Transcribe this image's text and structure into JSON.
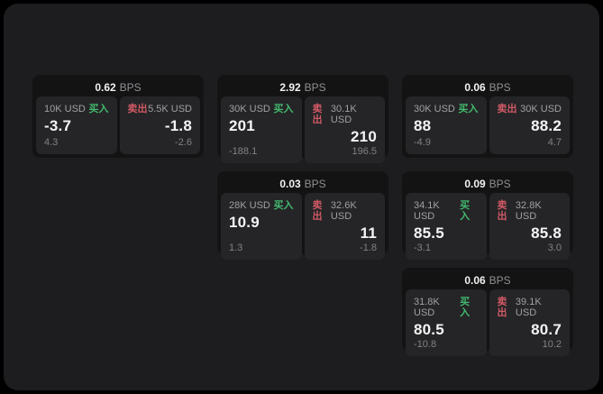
{
  "labels": {
    "unit": "BPS",
    "buy": "买入",
    "sell": "卖出"
  },
  "colors": {
    "page_bg": "#000000",
    "panel_bg": "#1d1d1f",
    "card_bg": "#131314",
    "subcard_bg": "#252527",
    "buy_accent": "#43b96e",
    "sell_accent": "#d05965",
    "primary_text": "#f4f4f5",
    "muted_text": "#9fa0a3"
  },
  "cards": [
    {
      "bps": "0.62",
      "buy": {
        "amount": "10K USD",
        "price": "-3.7",
        "delta": "4.3"
      },
      "sell": {
        "amount": "5.5K USD",
        "price": "-1.8",
        "delta": "-2.6"
      }
    },
    {
      "bps": "2.92",
      "buy": {
        "amount": "30K USD",
        "price": "201",
        "delta": "-188.1"
      },
      "sell": {
        "amount": "30.1K USD",
        "price": "210",
        "delta": "196.5"
      }
    },
    {
      "bps": "0.06",
      "buy": {
        "amount": "30K USD",
        "price": "88",
        "delta": "-4.9"
      },
      "sell": {
        "amount": "30K USD",
        "price": "88.2",
        "delta": "4.7"
      }
    },
    {
      "bps": "0.03",
      "buy": {
        "amount": "28K USD",
        "price": "10.9",
        "delta": "1.3"
      },
      "sell": {
        "amount": "32.6K USD",
        "price": "11",
        "delta": "-1.8"
      }
    },
    {
      "bps": "0.09",
      "buy": {
        "amount": "34.1K USD",
        "price": "85.5",
        "delta": "-3.1"
      },
      "sell": {
        "amount": "32.8K USD",
        "price": "85.8",
        "delta": "3.0"
      }
    },
    {
      "bps": "0.06",
      "buy": {
        "amount": "31.8K USD",
        "price": "80.5",
        "delta": "-10.8"
      },
      "sell": {
        "amount": "39.1K USD",
        "price": "80.7",
        "delta": "10.2"
      }
    }
  ]
}
